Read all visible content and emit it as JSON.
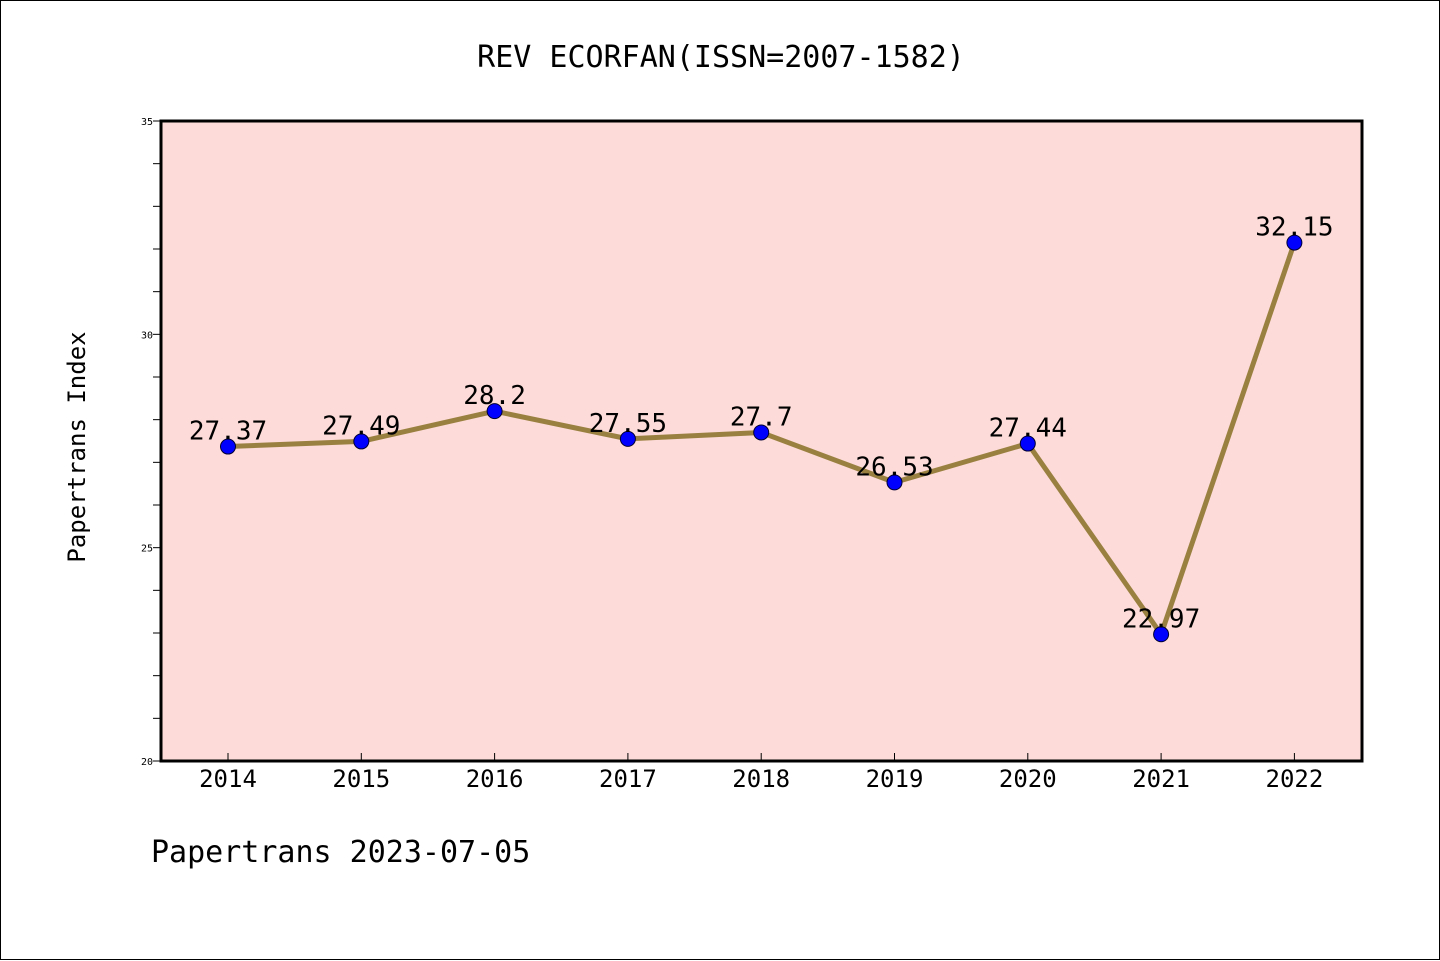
{
  "footer": "Papertrans 2023-07-05",
  "chart_data": {
    "type": "line",
    "title": "REV ECORFAN(ISSN=2007-1582)",
    "xlabel": "",
    "ylabel": "Papertrans Index",
    "categories": [
      "2014",
      "2015",
      "2016",
      "2017",
      "2018",
      "2019",
      "2020",
      "2021",
      "2022"
    ],
    "values": [
      27.37,
      27.49,
      28.2,
      27.55,
      27.7,
      26.53,
      27.44,
      22.97,
      32.15
    ],
    "value_labels": [
      "27.37",
      "27.49",
      "28.2",
      "27.55",
      "27.7",
      "26.53",
      "27.44",
      "22.97",
      "32.15"
    ],
    "ylim": [
      20,
      35
    ],
    "yticks": [
      "20",
      "25",
      "30",
      "35"
    ],
    "grid": false,
    "legend": "none",
    "colors": {
      "plot_background": "#fddbd8",
      "line": "#9a8040",
      "marker": "#0000ff",
      "marker_edge": "#000033"
    }
  }
}
